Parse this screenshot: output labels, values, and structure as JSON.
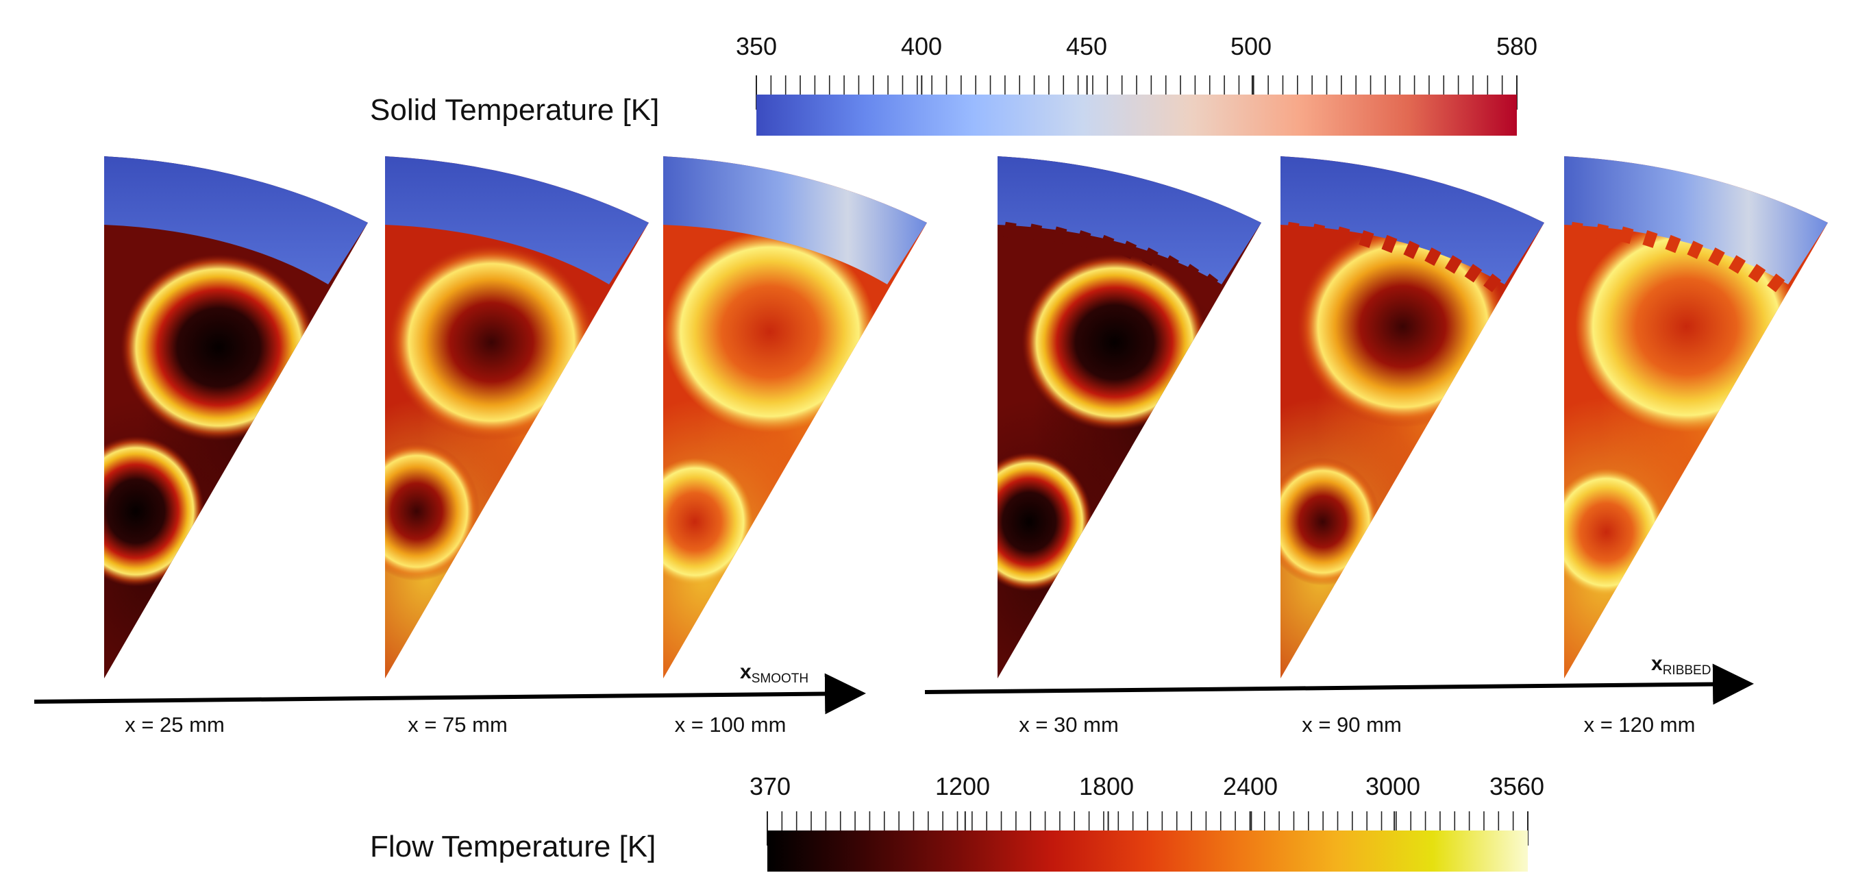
{
  "solid_colorbar": {
    "title": "Solid Temperature [K]",
    "tick_labels": [
      "350",
      "400",
      "450",
      "500",
      "580"
    ],
    "tick_values": [
      350,
      400,
      450,
      500,
      580
    ],
    "range": [
      350,
      580
    ],
    "color_stops": [
      "#3b4cc0",
      "#6788ee",
      "#9abbff",
      "#c9d7f0",
      "#edd1c2",
      "#f7a889",
      "#e26952",
      "#b40426"
    ]
  },
  "flow_colorbar": {
    "title": "Flow Temperature [K]",
    "tick_labels": [
      "370",
      "1200",
      "1800",
      "2400",
      "3000",
      "3560"
    ],
    "tick_values": [
      370,
      1200,
      1800,
      2400,
      3000,
      3560
    ],
    "range": [
      370,
      3560
    ],
    "color_stops": [
      "#000000",
      "#3a0404",
      "#7a0c08",
      "#c2180c",
      "#e4400e",
      "#f07a14",
      "#f4b21c",
      "#e6e010",
      "#fbfbcf"
    ]
  },
  "smooth": {
    "axis_label": "x",
    "axis_subscript": "SMOOTH",
    "positions": [
      "x = 25 mm",
      "x = 75 mm",
      "x = 100 mm"
    ]
  },
  "ribbed": {
    "axis_label": "x",
    "axis_subscript": "RIBBED",
    "positions": [
      "x = 30 mm",
      "x = 90 mm",
      "x = 120 mm"
    ]
  },
  "colors": {
    "wall_inner": "#4a64cc",
    "wall_outer": "#3d55bd",
    "flow_base": "#b32a0c"
  }
}
